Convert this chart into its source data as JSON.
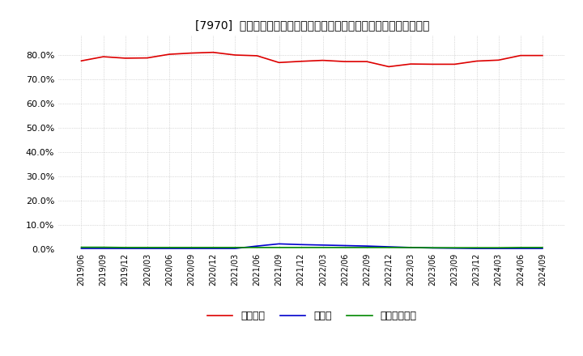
{
  "title": "[7970]  自己資本、のれん、繰延税金資産の総資産に対する比率の推移",
  "legend_labels": [
    "自己資本",
    "のれん",
    "繰延税金資産"
  ],
  "legend_colors": [
    "#dd0000",
    "#0000cc",
    "#008800"
  ],
  "ylim": [
    0.0,
    0.88
  ],
  "yticks": [
    0.0,
    0.1,
    0.2,
    0.3,
    0.4,
    0.5,
    0.6,
    0.7,
    0.8
  ],
  "ytick_labels": [
    "0.0%",
    "10.0%",
    "20.0%",
    "30.0%",
    "40.0%",
    "50.0%",
    "60.0%",
    "70.0%",
    "80.0%"
  ],
  "background_color": "#ffffff",
  "grid_color": "#bbbbbb",
  "dates": [
    "2019/06",
    "2019/09",
    "2019/12",
    "2020/03",
    "2020/06",
    "2020/09",
    "2020/12",
    "2021/03",
    "2021/06",
    "2021/09",
    "2021/12",
    "2022/03",
    "2022/06",
    "2022/09",
    "2022/12",
    "2023/03",
    "2023/06",
    "2023/09",
    "2023/12",
    "2024/03",
    "2024/06",
    "2024/09"
  ],
  "equity_ratio": [
    0.776,
    0.793,
    0.787,
    0.788,
    0.803,
    0.808,
    0.811,
    0.8,
    0.797,
    0.769,
    0.774,
    0.778,
    0.773,
    0.773,
    0.752,
    0.763,
    0.762,
    0.762,
    0.775,
    0.779,
    0.798,
    0.798
  ],
  "goodwill_ratio": [
    0.003,
    0.003,
    0.003,
    0.003,
    0.003,
    0.003,
    0.003,
    0.003,
    0.013,
    0.022,
    0.019,
    0.017,
    0.015,
    0.013,
    0.01,
    0.007,
    0.005,
    0.004,
    0.003,
    0.003,
    0.003,
    0.003
  ],
  "deferred_tax_ratio": [
    0.008,
    0.008,
    0.007,
    0.007,
    0.007,
    0.007,
    0.007,
    0.007,
    0.007,
    0.007,
    0.007,
    0.007,
    0.007,
    0.007,
    0.007,
    0.007,
    0.006,
    0.006,
    0.006,
    0.006,
    0.007,
    0.007
  ]
}
